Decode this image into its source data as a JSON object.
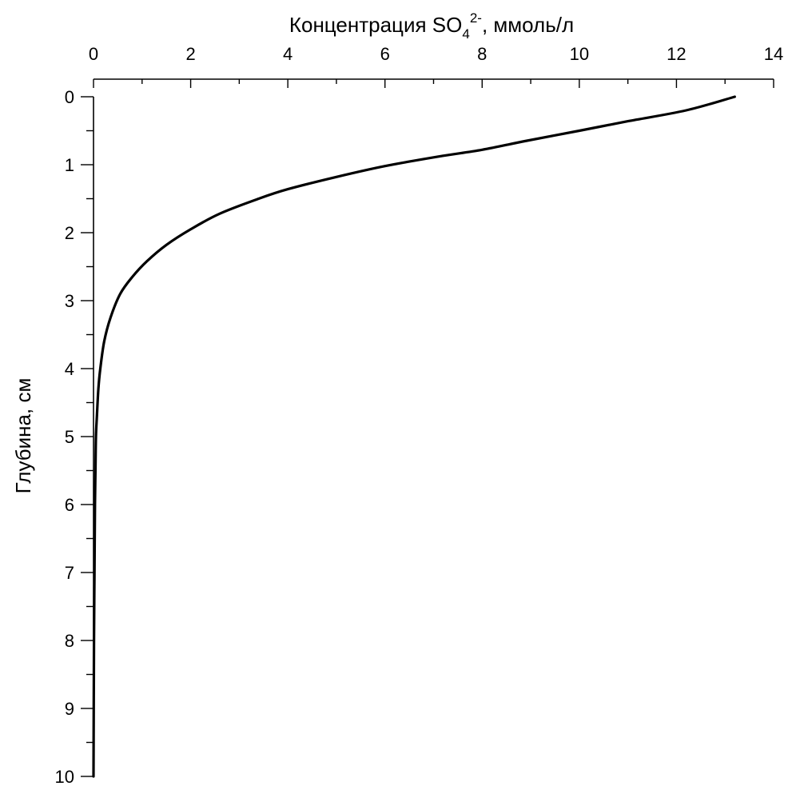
{
  "chart_data": {
    "type": "line",
    "xlabel": {
      "main": "Концентрация SO",
      "sub": "4",
      "sup": "2-",
      "rest": ", ммоль/л"
    },
    "ylabel": "Глубина, см",
    "x_axis_position": "top",
    "y_inverted": true,
    "xlim": [
      0,
      14
    ],
    "ylim": [
      0,
      10
    ],
    "x_major_ticks": [
      0,
      2,
      4,
      6,
      8,
      10,
      12,
      14
    ],
    "x_minor_ticks": [
      1,
      3,
      5,
      7,
      9,
      11,
      13
    ],
    "y_major_ticks": [
      0,
      1,
      2,
      3,
      4,
      5,
      6,
      7,
      8,
      9,
      10
    ],
    "y_minor_ticks": [
      0.5,
      1.5,
      2.5,
      3.5,
      4.5,
      5.5,
      6.5,
      7.5,
      8.5,
      9.5
    ],
    "grid": false,
    "series": [
      {
        "x": [
          13.2,
          12.2,
          11.0,
          10.0,
          8.9,
          8.0,
          7.1,
          6.0,
          5.0,
          4.0,
          3.4,
          2.6,
          2.0,
          1.5,
          1.1,
          0.8,
          0.55,
          0.35,
          0.22,
          0.14,
          0.1,
          0.07,
          0.05,
          0.04,
          0.03,
          0.02,
          0.01,
          0.0
        ],
        "y": [
          0.0,
          0.2,
          0.36,
          0.5,
          0.65,
          0.78,
          0.88,
          1.02,
          1.18,
          1.36,
          1.5,
          1.72,
          1.95,
          2.18,
          2.42,
          2.65,
          2.9,
          3.25,
          3.6,
          4.0,
          4.3,
          4.7,
          5.0,
          5.5,
          6.0,
          7.0,
          8.0,
          10.0
        ]
      }
    ]
  }
}
